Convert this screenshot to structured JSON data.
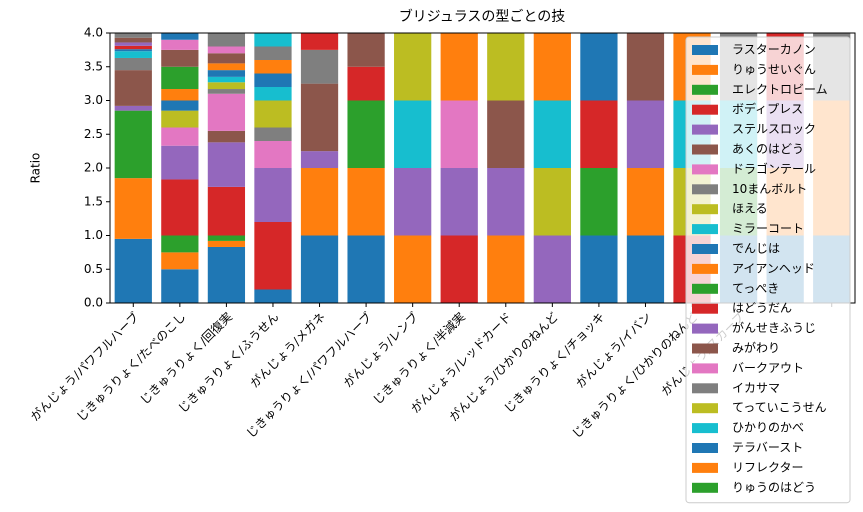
{
  "chart_data": {
    "type": "stacked_bar",
    "title": "ブリジュラスの型ごとの技",
    "ylabel": "Ratio",
    "categories": [
      "がんじょう/パワフルハーブ",
      "じきゅうりょく/たべのこし",
      "じきゅうりょく/回復実",
      "じきゅうりょく/ふうせん",
      "がんじょう/メガネ",
      "じきゅうりょく/パワフルハーブ",
      "がんじょう/レンブ",
      "じきゅうりょく/半減実",
      "がんじょう/レッドカード",
      "がんじょう/ひかりのねんど",
      "じきゅうりょく/チョッキ",
      "がんじょう/イバン",
      "じきゅうりょく/ひかりのねんど",
      "がんじょう/スカーフ",
      null,
      null
    ],
    "ylim": [
      0,
      4
    ],
    "yticks": [
      {
        "value": 0,
        "label": "0.0"
      },
      {
        "value": 0.5,
        "label": "0.5"
      },
      {
        "value": 1,
        "label": "1.0"
      },
      {
        "value": 1.5,
        "label": "1.5"
      },
      {
        "value": 2,
        "label": "2.0"
      },
      {
        "value": 2.5,
        "label": "2.5"
      },
      {
        "value": 3,
        "label": "3.0"
      },
      {
        "value": 3.5,
        "label": "3.5"
      },
      {
        "value": 4,
        "label": "4.0"
      }
    ],
    "legend": "upper right",
    "series": [
      {
        "name": "ラスターカノン",
        "color": "#1f77b4",
        "values": [
          0.95,
          0.5,
          0.83,
          0.2,
          1,
          1,
          0,
          0,
          0,
          0,
          1,
          1,
          0,
          1,
          1,
          1
        ]
      },
      {
        "name": "りゅうせいぐん",
        "color": "#ff7f0e",
        "values": [
          0.9,
          0.25,
          0.09,
          0,
          1,
          1,
          1,
          0,
          1,
          0,
          0,
          1,
          0,
          0,
          1,
          1
        ]
      },
      {
        "name": "エレクトロビーム",
        "color": "#2ca02c",
        "values": [
          1,
          0.25,
          0.08,
          0,
          0,
          1,
          0,
          0,
          0,
          0,
          1,
          0,
          0,
          1,
          0,
          0
        ]
      },
      {
        "name": "ボディプレス",
        "color": "#d62728",
        "values": [
          0,
          0.83,
          0.72,
          1,
          0,
          0.5,
          0,
          1,
          0,
          0,
          1,
          0,
          1,
          0,
          0,
          0
        ]
      },
      {
        "name": "ステルスロック",
        "color": "#9467bd",
        "values": [
          0.07,
          0.5,
          0.66,
          0.8,
          0.25,
          0,
          1,
          1,
          1,
          1,
          0,
          1,
          0,
          0,
          1,
          0
        ]
      },
      {
        "name": "あくのはどう",
        "color": "#8c564b",
        "values": [
          0.53,
          0,
          0.17,
          0,
          1,
          0.5,
          0,
          0,
          1,
          0,
          0,
          1,
          0,
          0,
          0,
          0
        ]
      },
      {
        "name": "ドラゴンテール",
        "color": "#e377c2",
        "values": [
          0,
          0.27,
          0.55,
          0.4,
          0,
          0,
          0,
          1,
          0,
          0,
          0,
          0,
          0,
          0,
          0,
          0
        ]
      },
      {
        "name": "10まんボルト",
        "color": "#7f7f7f",
        "values": [
          0.18,
          0,
          0.07,
          0.2,
          0.5,
          0,
          0,
          0,
          0,
          0,
          0,
          0,
          0,
          0,
          0,
          0
        ]
      },
      {
        "name": "ほえる",
        "color": "#bcbd22",
        "values": [
          0,
          0.25,
          0.1,
          0.4,
          0,
          0,
          0,
          0,
          1,
          1,
          0,
          0,
          1,
          0,
          0,
          0
        ]
      },
      {
        "name": "ミラーコート",
        "color": "#17becf",
        "values": [
          0.1,
          0,
          0.08,
          0.2,
          0,
          0,
          1,
          0,
          0,
          1,
          0,
          0,
          1,
          1,
          0,
          0
        ]
      },
      {
        "name": "でんじは",
        "color": "#1f77b4",
        "values": [
          0.03,
          0.15,
          0.1,
          0.2,
          0,
          0,
          0,
          0,
          0,
          0,
          1,
          0,
          0,
          0,
          0,
          0
        ]
      },
      {
        "name": "アイアンヘッド",
        "color": "#ff7f0e",
        "values": [
          0,
          0.17,
          0.1,
          0.2,
          0,
          0,
          0,
          1,
          0,
          1,
          0,
          0,
          1,
          0,
          0,
          1
        ]
      },
      {
        "name": "てっぺき",
        "color": "#2ca02c",
        "values": [
          0,
          0.33,
          0,
          0,
          0,
          0,
          0,
          0,
          0,
          0,
          0,
          0,
          0,
          0,
          0,
          0
        ]
      },
      {
        "name": "はどうだん",
        "color": "#d62728",
        "values": [
          0.05,
          0,
          0,
          0,
          0.25,
          0,
          0,
          0,
          0,
          0,
          0,
          0,
          0,
          0,
          1,
          0
        ]
      },
      {
        "name": "がんせきふうじ",
        "color": "#9467bd",
        "values": [
          0.05,
          0,
          0,
          0,
          0,
          0,
          0,
          0,
          0,
          0,
          0,
          0,
          0,
          0,
          0,
          0
        ]
      },
      {
        "name": "みがわり",
        "color": "#8c564b",
        "values": [
          0.07,
          0.25,
          0.15,
          0,
          0,
          0,
          0,
          0,
          0,
          0,
          0,
          0,
          0,
          0,
          0,
          0
        ]
      },
      {
        "name": "バークアウト",
        "color": "#e377c2",
        "values": [
          0,
          0.15,
          0.1,
          0,
          0,
          0,
          0,
          0,
          0,
          0,
          0,
          0,
          0,
          0,
          0,
          0
        ]
      },
      {
        "name": "イカサマ",
        "color": "#7f7f7f",
        "values": [
          0.07,
          0,
          0.2,
          0.2,
          0,
          0,
          0,
          0,
          0,
          0,
          0,
          0,
          0,
          1,
          0,
          1
        ]
      },
      {
        "name": "てっていこうせん",
        "color": "#bcbd22",
        "values": [
          0,
          0,
          0,
          0,
          0,
          0,
          1,
          0,
          0,
          0,
          0,
          0,
          0,
          0,
          0,
          0
        ]
      },
      {
        "name": "ひかりのかべ",
        "color": "#17becf",
        "values": [
          0,
          0,
          0,
          0.2,
          0,
          0,
          0,
          0,
          0,
          0,
          0,
          0,
          0,
          0,
          0,
          0
        ]
      },
      {
        "name": "テラバースト",
        "color": "#1f77b4",
        "values": [
          0,
          0.1,
          0,
          0,
          0,
          0,
          0,
          0,
          0,
          0,
          0,
          0,
          0,
          0,
          0,
          0
        ]
      },
      {
        "name": "リフレクター",
        "color": "#ff7f0e",
        "values": [
          0,
          0,
          0,
          0,
          0,
          0,
          0,
          0,
          0,
          0,
          0,
          0,
          0,
          0,
          0,
          0
        ]
      },
      {
        "name": "りゅうのはどう",
        "color": "#2ca02c",
        "values": [
          0,
          0,
          0,
          0,
          0,
          0,
          0,
          0,
          0,
          0,
          0,
          0,
          0,
          0,
          0,
          0
        ]
      }
    ]
  }
}
